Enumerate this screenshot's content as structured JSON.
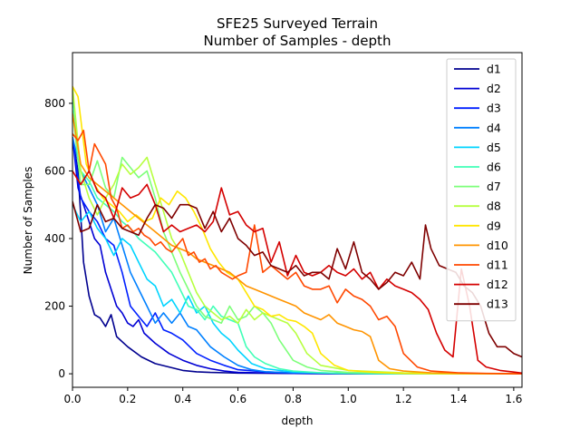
{
  "chart_data": {
    "type": "line",
    "title": "SFE25 Surveyed Terrain",
    "subtitle": "Number of Samples - depth",
    "xlabel": "depth",
    "ylabel": "Number of Samples",
    "xlim": [
      0,
      1.63
    ],
    "ylim": [
      -40,
      950
    ],
    "xticks": [
      0.0,
      0.2,
      0.4,
      0.6,
      0.8,
      1.0,
      1.2,
      1.4,
      1.6
    ],
    "xtick_labels": [
      "0.0",
      "0.2",
      "0.4",
      "0.6",
      "0.8",
      "1.0",
      "1.2",
      "1.4",
      "1.6"
    ],
    "yticks": [
      0,
      200,
      400,
      600,
      800
    ],
    "ytick_labels": [
      "0",
      "200",
      "400",
      "600",
      "800"
    ],
    "grid": false,
    "legend_position": "top-right",
    "series": [
      {
        "name": "d1",
        "color": "#00008f",
        "x": [
          0.0,
          0.02,
          0.04,
          0.06,
          0.08,
          0.1,
          0.12,
          0.14,
          0.16,
          0.2,
          0.25,
          0.3,
          0.35,
          0.4,
          0.45,
          0.5,
          0.6,
          0.8,
          1.0,
          1.2,
          1.4,
          1.63
        ],
        "y": [
          700,
          600,
          330,
          230,
          175,
          165,
          140,
          175,
          110,
          80,
          50,
          30,
          20,
          10,
          6,
          4,
          2,
          1,
          0,
          0,
          0,
          0
        ]
      },
      {
        "name": "d2",
        "color": "#0000d4",
        "x": [
          0.0,
          0.02,
          0.04,
          0.06,
          0.08,
          0.1,
          0.12,
          0.14,
          0.16,
          0.18,
          0.2,
          0.22,
          0.24,
          0.26,
          0.3,
          0.35,
          0.4,
          0.45,
          0.5,
          0.55,
          0.6,
          0.8,
          1.0,
          1.2,
          1.4,
          1.63
        ],
        "y": [
          700,
          550,
          500,
          450,
          400,
          380,
          300,
          250,
          200,
          180,
          150,
          140,
          160,
          120,
          90,
          60,
          40,
          25,
          15,
          8,
          4,
          1,
          0,
          0,
          0,
          0
        ]
      },
      {
        "name": "d3",
        "color": "#0020ff",
        "x": [
          0.0,
          0.03,
          0.06,
          0.09,
          0.12,
          0.15,
          0.18,
          0.21,
          0.24,
          0.27,
          0.3,
          0.33,
          0.36,
          0.4,
          0.45,
          0.5,
          0.55,
          0.6,
          0.7,
          0.8,
          1.0,
          1.2,
          1.4,
          1.63
        ],
        "y": [
          700,
          520,
          480,
          450,
          400,
          380,
          300,
          200,
          170,
          140,
          180,
          130,
          120,
          100,
          60,
          40,
          25,
          12,
          6,
          3,
          1,
          0,
          0,
          0
        ]
      },
      {
        "name": "d4",
        "color": "#0080ff",
        "x": [
          0.0,
          0.03,
          0.06,
          0.09,
          0.12,
          0.15,
          0.18,
          0.21,
          0.24,
          0.27,
          0.3,
          0.33,
          0.36,
          0.39,
          0.42,
          0.45,
          0.5,
          0.55,
          0.6,
          0.65,
          0.7,
          0.8,
          1.0,
          1.2,
          1.4,
          1.63
        ],
        "y": [
          700,
          600,
          550,
          500,
          420,
          460,
          380,
          300,
          250,
          200,
          150,
          180,
          150,
          180,
          140,
          130,
          80,
          50,
          25,
          12,
          6,
          3,
          1,
          0,
          0,
          0
        ]
      },
      {
        "name": "d5",
        "color": "#00d4ff",
        "x": [
          0.0,
          0.03,
          0.06,
          0.09,
          0.12,
          0.15,
          0.18,
          0.21,
          0.24,
          0.27,
          0.3,
          0.33,
          0.36,
          0.39,
          0.42,
          0.45,
          0.48,
          0.51,
          0.54,
          0.57,
          0.6,
          0.65,
          0.7,
          0.8,
          1.0,
          1.2,
          1.4,
          1.63
        ],
        "y": [
          500,
          450,
          480,
          430,
          400,
          350,
          400,
          380,
          330,
          280,
          260,
          200,
          220,
          180,
          230,
          180,
          200,
          150,
          120,
          100,
          70,
          30,
          15,
          5,
          1,
          0,
          0,
          0
        ]
      },
      {
        "name": "d6",
        "color": "#40ffb7",
        "x": [
          0.0,
          0.03,
          0.06,
          0.09,
          0.12,
          0.15,
          0.18,
          0.21,
          0.24,
          0.27,
          0.3,
          0.33,
          0.36,
          0.39,
          0.42,
          0.45,
          0.48,
          0.51,
          0.54,
          0.57,
          0.6,
          0.63,
          0.66,
          0.7,
          0.75,
          0.8,
          0.9,
          1.0,
          1.2,
          1.4,
          1.63
        ],
        "y": [
          820,
          600,
          570,
          520,
          500,
          480,
          450,
          430,
          400,
          380,
          360,
          330,
          300,
          250,
          200,
          190,
          160,
          200,
          170,
          160,
          150,
          80,
          50,
          30,
          15,
          8,
          3,
          1,
          0,
          0,
          0
        ]
      },
      {
        "name": "d7",
        "color": "#7dff7a",
        "x": [
          0.0,
          0.03,
          0.06,
          0.09,
          0.12,
          0.15,
          0.18,
          0.21,
          0.24,
          0.27,
          0.3,
          0.33,
          0.36,
          0.39,
          0.42,
          0.45,
          0.48,
          0.51,
          0.54,
          0.57,
          0.6,
          0.63,
          0.66,
          0.69,
          0.72,
          0.75,
          0.8,
          0.85,
          0.9,
          1.0,
          1.2,
          1.4,
          1.63
        ],
        "y": [
          780,
          560,
          560,
          630,
          550,
          520,
          640,
          610,
          580,
          600,
          520,
          420,
          360,
          300,
          250,
          200,
          170,
          160,
          150,
          200,
          160,
          170,
          200,
          180,
          150,
          100,
          40,
          20,
          10,
          4,
          1,
          0,
          0
        ]
      },
      {
        "name": "d8",
        "color": "#b7ff40",
        "x": [
          0.0,
          0.03,
          0.06,
          0.09,
          0.12,
          0.15,
          0.18,
          0.21,
          0.24,
          0.27,
          0.3,
          0.33,
          0.36,
          0.39,
          0.42,
          0.45,
          0.48,
          0.51,
          0.54,
          0.57,
          0.6,
          0.63,
          0.66,
          0.69,
          0.72,
          0.75,
          0.78,
          0.81,
          0.85,
          0.9,
          1.0,
          1.2,
          1.4,
          1.63
        ],
        "y": [
          850,
          600,
          520,
          470,
          520,
          560,
          620,
          590,
          610,
          640,
          560,
          480,
          400,
          360,
          300,
          240,
          200,
          180,
          160,
          170,
          150,
          190,
          160,
          180,
          170,
          160,
          150,
          120,
          60,
          25,
          10,
          3,
          1,
          0
        ]
      },
      {
        "name": "d9",
        "color": "#ffe600",
        "x": [
          0.0,
          0.02,
          0.05,
          0.08,
          0.11,
          0.14,
          0.17,
          0.2,
          0.23,
          0.26,
          0.29,
          0.32,
          0.35,
          0.38,
          0.41,
          0.44,
          0.47,
          0.5,
          0.53,
          0.56,
          0.6,
          0.63,
          0.66,
          0.69,
          0.72,
          0.75,
          0.78,
          0.81,
          0.84,
          0.87,
          0.9,
          0.95,
          1.0,
          1.1,
          1.2,
          1.4,
          1.63
        ],
        "y": [
          850,
          820,
          620,
          560,
          520,
          500,
          480,
          450,
          470,
          450,
          460,
          520,
          500,
          540,
          520,
          480,
          430,
          370,
          330,
          300,
          280,
          240,
          200,
          190,
          170,
          175,
          160,
          155,
          140,
          120,
          60,
          25,
          10,
          4,
          1,
          0,
          0
        ]
      },
      {
        "name": "d10",
        "color": "#ff9400",
        "x": [
          0.0,
          0.03,
          0.06,
          0.09,
          0.12,
          0.15,
          0.18,
          0.21,
          0.24,
          0.27,
          0.3,
          0.33,
          0.36,
          0.39,
          0.42,
          0.45,
          0.48,
          0.51,
          0.54,
          0.57,
          0.6,
          0.63,
          0.66,
          0.69,
          0.72,
          0.75,
          0.78,
          0.81,
          0.84,
          0.87,
          0.9,
          0.93,
          0.96,
          0.99,
          1.02,
          1.05,
          1.08,
          1.11,
          1.15,
          1.2,
          1.3,
          1.4,
          1.63
        ],
        "y": [
          770,
          620,
          580,
          560,
          540,
          520,
          500,
          480,
          460,
          440,
          420,
          400,
          380,
          370,
          360,
          340,
          330,
          320,
          310,
          300,
          280,
          260,
          250,
          240,
          230,
          220,
          210,
          200,
          180,
          170,
          160,
          175,
          150,
          140,
          130,
          125,
          110,
          40,
          15,
          8,
          3,
          1,
          0
        ]
      },
      {
        "name": "d11",
        "color": "#ff4800",
        "x": [
          0.0,
          0.02,
          0.04,
          0.06,
          0.08,
          0.1,
          0.12,
          0.14,
          0.16,
          0.18,
          0.2,
          0.22,
          0.24,
          0.26,
          0.28,
          0.3,
          0.32,
          0.34,
          0.36,
          0.38,
          0.4,
          0.42,
          0.44,
          0.46,
          0.48,
          0.5,
          0.52,
          0.54,
          0.56,
          0.58,
          0.6,
          0.63,
          0.66,
          0.69,
          0.72,
          0.75,
          0.78,
          0.81,
          0.84,
          0.87,
          0.9,
          0.93,
          0.96,
          0.99,
          1.02,
          1.05,
          1.08,
          1.11,
          1.14,
          1.17,
          1.2,
          1.25,
          1.3,
          1.4,
          1.5,
          1.63
        ],
        "y": [
          710,
          690,
          720,
          600,
          680,
          650,
          620,
          520,
          490,
          430,
          440,
          420,
          430,
          410,
          400,
          380,
          390,
          370,
          360,
          380,
          400,
          350,
          360,
          330,
          340,
          310,
          320,
          300,
          290,
          280,
          290,
          300,
          440,
          300,
          320,
          300,
          280,
          300,
          260,
          250,
          250,
          260,
          210,
          250,
          230,
          220,
          200,
          160,
          170,
          140,
          60,
          20,
          8,
          3,
          1,
          0
        ]
      },
      {
        "name": "d12",
        "color": "#d40000",
        "x": [
          0.0,
          0.03,
          0.06,
          0.09,
          0.12,
          0.15,
          0.18,
          0.21,
          0.24,
          0.27,
          0.3,
          0.33,
          0.36,
          0.39,
          0.42,
          0.45,
          0.48,
          0.51,
          0.54,
          0.57,
          0.6,
          0.63,
          0.66,
          0.69,
          0.72,
          0.75,
          0.78,
          0.81,
          0.84,
          0.87,
          0.9,
          0.93,
          0.96,
          0.99,
          1.02,
          1.05,
          1.08,
          1.11,
          1.14,
          1.17,
          1.2,
          1.23,
          1.26,
          1.29,
          1.32,
          1.35,
          1.38,
          1.41,
          1.44,
          1.47,
          1.5,
          1.55,
          1.6,
          1.63
        ],
        "y": [
          600,
          560,
          600,
          540,
          520,
          460,
          550,
          520,
          530,
          560,
          500,
          420,
          440,
          420,
          430,
          440,
          420,
          450,
          550,
          470,
          480,
          440,
          420,
          430,
          330,
          390,
          290,
          350,
          300,
          290,
          300,
          320,
          300,
          290,
          310,
          280,
          300,
          250,
          280,
          260,
          250,
          240,
          220,
          190,
          120,
          70,
          50,
          310,
          200,
          40,
          20,
          10,
          5,
          2
        ]
      },
      {
        "name": "d13",
        "color": "#7f0000",
        "x": [
          0.0,
          0.03,
          0.06,
          0.09,
          0.12,
          0.15,
          0.18,
          0.21,
          0.24,
          0.27,
          0.3,
          0.33,
          0.36,
          0.39,
          0.42,
          0.45,
          0.48,
          0.51,
          0.54,
          0.57,
          0.6,
          0.63,
          0.66,
          0.69,
          0.72,
          0.75,
          0.78,
          0.81,
          0.84,
          0.87,
          0.9,
          0.93,
          0.96,
          0.99,
          1.02,
          1.05,
          1.08,
          1.11,
          1.14,
          1.17,
          1.2,
          1.23,
          1.26,
          1.28,
          1.3,
          1.33,
          1.36,
          1.39,
          1.42,
          1.45,
          1.48,
          1.51,
          1.54,
          1.57,
          1.6,
          1.63
        ],
        "y": [
          510,
          420,
          430,
          500,
          450,
          460,
          430,
          420,
          410,
          460,
          500,
          490,
          460,
          500,
          500,
          490,
          430,
          480,
          420,
          460,
          400,
          380,
          350,
          360,
          320,
          310,
          300,
          320,
          290,
          300,
          300,
          280,
          370,
          310,
          390,
          300,
          280,
          250,
          270,
          300,
          290,
          330,
          280,
          440,
          370,
          320,
          310,
          300,
          260,
          240,
          200,
          120,
          80,
          80,
          60,
          50
        ]
      }
    ]
  }
}
